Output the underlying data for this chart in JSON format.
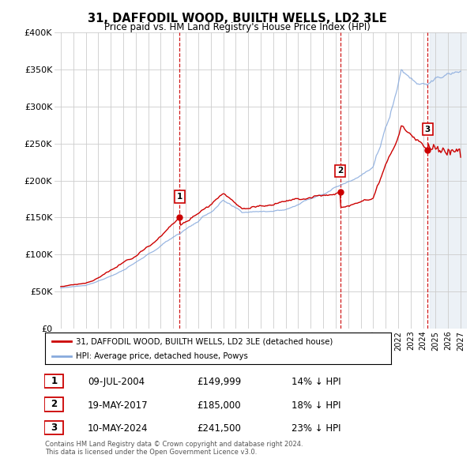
{
  "title": "31, DAFFODIL WOOD, BUILTH WELLS, LD2 3LE",
  "subtitle": "Price paid vs. HM Land Registry's House Price Index (HPI)",
  "legend_label_red": "31, DAFFODIL WOOD, BUILTH WELLS, LD2 3LE (detached house)",
  "legend_label_blue": "HPI: Average price, detached house, Powys",
  "footer": "Contains HM Land Registry data © Crown copyright and database right 2024.\nThis data is licensed under the Open Government Licence v3.0.",
  "sale_points": [
    {
      "num": "1",
      "date": "09-JUL-2004",
      "price": "£149,999",
      "pct": "14% ↓ HPI",
      "year": 2004.52,
      "price_val": 149999
    },
    {
      "num": "2",
      "date": "19-MAY-2017",
      "price": "£185,000",
      "pct": "18% ↓ HPI",
      "year": 2017.38,
      "price_val": 185000
    },
    {
      "num": "3",
      "date": "10-MAY-2024",
      "price": "£241,500",
      "pct": "23% ↓ HPI",
      "year": 2024.36,
      "price_val": 241500
    }
  ],
  "ylim": [
    0,
    400000
  ],
  "xlim": [
    1994.5,
    2027.5
  ],
  "yticks": [
    0,
    50000,
    100000,
    150000,
    200000,
    250000,
    300000,
    350000,
    400000
  ],
  "ytick_labels": [
    "£0",
    "£50K",
    "£100K",
    "£150K",
    "£200K",
    "£250K",
    "£300K",
    "£350K",
    "£400K"
  ],
  "red_color": "#cc0000",
  "blue_color": "#88aadd",
  "vline_color": "#cc0000",
  "grid_color": "#cccccc",
  "background_color": "#ffffff",
  "hatch_color": "#e0e8f0",
  "hatch_start": 2024.5
}
